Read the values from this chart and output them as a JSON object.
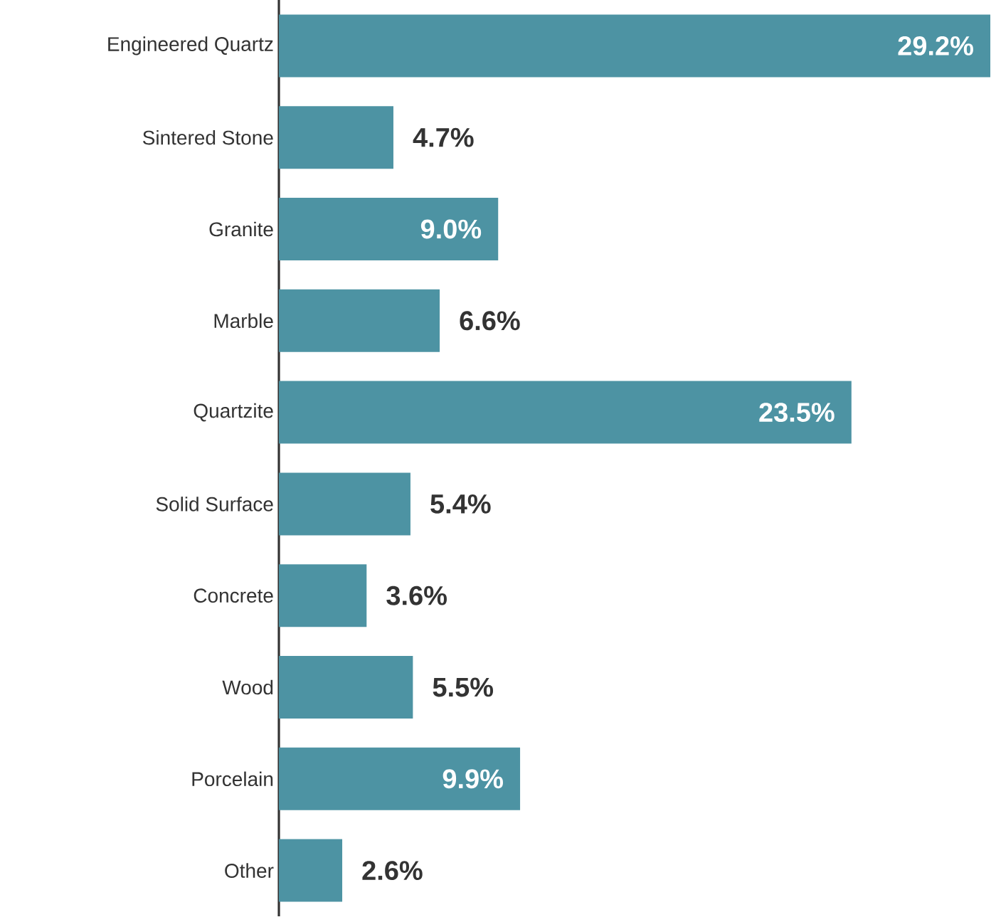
{
  "chart_data": {
    "type": "bar",
    "orientation": "horizontal",
    "categories": [
      "Engineered Quartz",
      "Sintered Stone",
      "Granite",
      "Marble",
      "Quartzite",
      "Solid Surface",
      "Concrete",
      "Wood",
      "Porcelain",
      "Other"
    ],
    "values": [
      29.2,
      4.7,
      9.0,
      6.6,
      23.5,
      5.4,
      3.6,
      5.5,
      9.9,
      2.6
    ],
    "value_labels": [
      "29.2%",
      "4.7%",
      "9.0%",
      "6.6%",
      "23.5%",
      "5.4%",
      "3.6%",
      "5.5%",
      "9.9%",
      "2.6%"
    ],
    "color": "#4d93a3",
    "tick_labels": "y"
  }
}
